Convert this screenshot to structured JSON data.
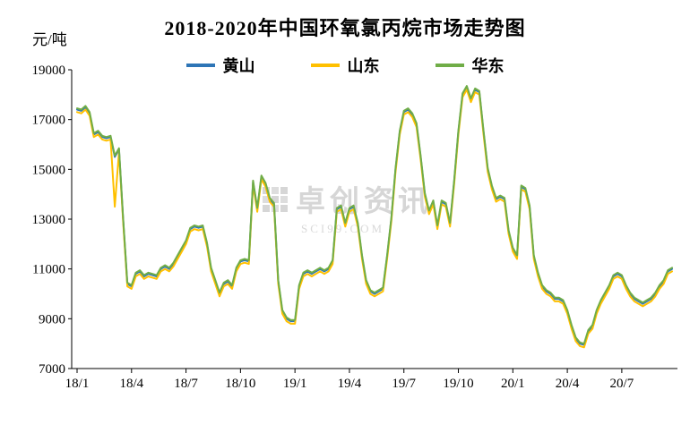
{
  "watermark": {
    "name": "卓创资讯",
    "site": "SCI99.COM"
  },
  "chart_data": {
    "type": "line",
    "title": "2018-2020年中国环氧氯丙烷市场走势图",
    "ylabel": "元/吨",
    "xlabel": "",
    "ylim": [
      7000,
      19000
    ],
    "y_ticks": [
      19000,
      17000,
      15000,
      13000,
      11000,
      9000,
      7000
    ],
    "x_tick_labels": [
      "18/1",
      "18/4",
      "18/7",
      "18/10",
      "19/1",
      "19/4",
      "19/7",
      "19/10",
      "20/1",
      "20/4",
      "20/7"
    ],
    "x_tick_indices": [
      0,
      13,
      26,
      39,
      52,
      65,
      78,
      91,
      104,
      117,
      130
    ],
    "grid": false,
    "legend_position": "top",
    "series": [
      {
        "id": "huangshan",
        "name": "黄山",
        "color": "#2E75B6",
        "values": [
          17400,
          17350,
          17500,
          17250,
          16400,
          16500,
          16300,
          16250,
          16300,
          15500,
          15800,
          13000,
          10400,
          10300,
          10800,
          10900,
          10700,
          10800,
          10750,
          10700,
          11000,
          11100,
          11000,
          11200,
          11500,
          11800,
          12100,
          12600,
          12700,
          12650,
          12700,
          12000,
          11000,
          10500,
          10000,
          10400,
          10500,
          10300,
          11000,
          11300,
          11350,
          11300,
          14500,
          13400,
          14700,
          14400,
          13800,
          13600,
          10500,
          9300,
          9000,
          8900,
          8900,
          10300,
          10800,
          10900,
          10800,
          10900,
          11000,
          10900,
          11000,
          11300,
          13400,
          13500,
          12800,
          13400,
          13500,
          12800,
          11500,
          10500,
          10100,
          10000,
          10100,
          10200,
          11500,
          13000,
          15000,
          16500,
          17300,
          17400,
          17200,
          16800,
          15500,
          14000,
          13300,
          13700,
          12700,
          13700,
          13600,
          12800,
          14500,
          16500,
          18000,
          18300,
          17800,
          18200,
          18100,
          16500,
          15000,
          14300,
          13800,
          13900,
          13800,
          12500,
          11800,
          11500,
          14300,
          14200,
          13500,
          11500,
          10800,
          10300,
          10100,
          10000,
          9800,
          9800,
          9700,
          9300,
          8700,
          8200,
          8000,
          7950,
          8500,
          8700,
          9300,
          9700,
          10000,
          10300,
          10700,
          10800,
          10700,
          10300,
          10000,
          9800,
          9700,
          9600,
          9700,
          9800,
          10000,
          10300,
          10500,
          10900,
          11000
        ]
      },
      {
        "id": "shandong",
        "name": "山东",
        "color": "#FFC000",
        "values": [
          17300,
          17250,
          17400,
          17150,
          16300,
          16400,
          16200,
          16150,
          16200,
          13500,
          15700,
          12900,
          10300,
          10200,
          10700,
          10800,
          10600,
          10700,
          10650,
          10600,
          10900,
          11000,
          10900,
          11100,
          11400,
          11700,
          12000,
          12500,
          12600,
          12550,
          12600,
          11900,
          10900,
          10400,
          9900,
          10300,
          10400,
          10200,
          10900,
          11200,
          11250,
          11200,
          14400,
          13300,
          14600,
          14300,
          13700,
          13500,
          10400,
          9200,
          8900,
          8800,
          8800,
          10200,
          10700,
          10800,
          10700,
          10800,
          10900,
          10800,
          10900,
          11200,
          13300,
          13400,
          12700,
          13300,
          13400,
          12700,
          11400,
          10400,
          10000,
          9900,
          10000,
          10100,
          11400,
          12900,
          14900,
          16400,
          17200,
          17300,
          17100,
          16700,
          15400,
          13900,
          13200,
          13600,
          12600,
          13600,
          13500,
          12700,
          14400,
          16400,
          17900,
          18200,
          17700,
          18100,
          18000,
          16400,
          14900,
          14200,
          13700,
          13800,
          13700,
          12400,
          11700,
          11400,
          14200,
          14100,
          13400,
          11400,
          10700,
          10200,
          10000,
          9900,
          9700,
          9700,
          9600,
          9200,
          8600,
          8100,
          7900,
          7850,
          8400,
          8600,
          9200,
          9600,
          9900,
          10200,
          10600,
          10700,
          10600,
          10200,
          9900,
          9700,
          9600,
          9500,
          9600,
          9700,
          9900,
          10200,
          10400,
          10800,
          10900
        ]
      },
      {
        "id": "huadong",
        "name": "华东",
        "color": "#70AD47",
        "values": [
          17450,
          17400,
          17550,
          17300,
          16450,
          16550,
          16350,
          16300,
          16350,
          15550,
          15850,
          13050,
          10450,
          10350,
          10850,
          10950,
          10750,
          10850,
          10800,
          10750,
          11050,
          11150,
          11050,
          11250,
          11550,
          11850,
          12150,
          12650,
          12750,
          12700,
          12750,
          12050,
          11050,
          10550,
          10050,
          10450,
          10550,
          10350,
          11050,
          11350,
          11400,
          11350,
          14550,
          13450,
          14750,
          14450,
          13850,
          13650,
          10550,
          9350,
          9050,
          8950,
          8950,
          10350,
          10850,
          10950,
          10850,
          10950,
          11050,
          10950,
          11050,
          11350,
          13450,
          13550,
          12850,
          13450,
          13550,
          12850,
          11550,
          10550,
          10150,
          10050,
          10150,
          10250,
          11550,
          13050,
          15050,
          16550,
          17350,
          17450,
          17250,
          16850,
          15550,
          14050,
          13350,
          13750,
          12750,
          13750,
          13650,
          12850,
          14550,
          16550,
          18050,
          18350,
          17850,
          18250,
          18150,
          16550,
          15050,
          14350,
          13850,
          13950,
          13850,
          12550,
          11850,
          11550,
          14350,
          14250,
          13550,
          11550,
          10850,
          10350,
          10150,
          10050,
          9850,
          9850,
          9750,
          9350,
          8750,
          8250,
          8050,
          8000,
          8550,
          8750,
          9350,
          9750,
          10050,
          10350,
          10750,
          10850,
          10750,
          10350,
          10050,
          9850,
          9750,
          9650,
          9750,
          9850,
          10050,
          10350,
          10550,
          10950,
          11050
        ]
      }
    ]
  }
}
